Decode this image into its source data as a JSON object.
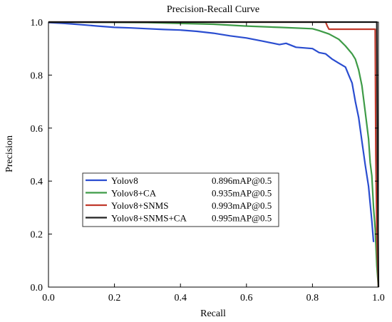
{
  "chart_data": {
    "type": "line",
    "title": "Precision-Recall Curve",
    "xlabel": "Recall",
    "ylabel": "Precision",
    "xlim": [
      0.0,
      1.0
    ],
    "ylim": [
      0.0,
      1.0
    ],
    "xticks": [
      "0.0",
      "0.2",
      "0.4",
      "0.6",
      "0.8",
      "1.0"
    ],
    "yticks": [
      "0.0",
      "0.2",
      "0.4",
      "0.6",
      "0.8",
      "1.0"
    ],
    "grid": false,
    "legend_position": "lower-left",
    "series": [
      {
        "name": "Yolov8",
        "map_label": "0.896mAP@0.5",
        "color": "#2a4dd0",
        "points": [
          [
            0.0,
            0.998
          ],
          [
            0.05,
            0.995
          ],
          [
            0.1,
            0.99
          ],
          [
            0.15,
            0.985
          ],
          [
            0.2,
            0.98
          ],
          [
            0.25,
            0.978
          ],
          [
            0.3,
            0.975
          ],
          [
            0.35,
            0.972
          ],
          [
            0.4,
            0.97
          ],
          [
            0.45,
            0.965
          ],
          [
            0.5,
            0.958
          ],
          [
            0.55,
            0.948
          ],
          [
            0.6,
            0.94
          ],
          [
            0.65,
            0.928
          ],
          [
            0.7,
            0.915
          ],
          [
            0.72,
            0.92
          ],
          [
            0.75,
            0.905
          ],
          [
            0.8,
            0.9
          ],
          [
            0.82,
            0.885
          ],
          [
            0.84,
            0.88
          ],
          [
            0.86,
            0.86
          ],
          [
            0.88,
            0.845
          ],
          [
            0.9,
            0.83
          ],
          [
            0.91,
            0.8
          ],
          [
            0.92,
            0.77
          ],
          [
            0.93,
            0.7
          ],
          [
            0.94,
            0.64
          ],
          [
            0.95,
            0.55
          ],
          [
            0.96,
            0.46
          ],
          [
            0.97,
            0.38
          ],
          [
            0.98,
            0.25
          ],
          [
            0.985,
            0.17
          ]
        ]
      },
      {
        "name": "Yolov8+CA",
        "map_label": "0.935mAP@0.5",
        "color": "#3e9b47",
        "points": [
          [
            0.0,
            1.0
          ],
          [
            0.3,
            0.998
          ],
          [
            0.5,
            0.992
          ],
          [
            0.6,
            0.985
          ],
          [
            0.7,
            0.98
          ],
          [
            0.8,
            0.975
          ],
          [
            0.82,
            0.968
          ],
          [
            0.85,
            0.955
          ],
          [
            0.88,
            0.935
          ],
          [
            0.9,
            0.91
          ],
          [
            0.92,
            0.88
          ],
          [
            0.93,
            0.86
          ],
          [
            0.94,
            0.82
          ],
          [
            0.95,
            0.76
          ],
          [
            0.96,
            0.66
          ],
          [
            0.97,
            0.56
          ],
          [
            0.975,
            0.47
          ],
          [
            0.98,
            0.42
          ],
          [
            0.985,
            0.3
          ],
          [
            0.99,
            0.22
          ],
          [
            0.995,
            0.08
          ],
          [
            1.0,
            0.0
          ]
        ]
      },
      {
        "name": "Yolov8+SNMS",
        "map_label": "0.993mAP@0.5",
        "color": "#c0392b",
        "points": [
          [
            0.0,
            1.0
          ],
          [
            0.84,
            1.0
          ],
          [
            0.845,
            0.985
          ],
          [
            0.85,
            0.973
          ],
          [
            0.99,
            0.973
          ],
          [
            0.992,
            0.5
          ],
          [
            0.995,
            0.2
          ],
          [
            1.0,
            0.0
          ]
        ]
      },
      {
        "name": "Yolov8+SNMS+CA",
        "map_label": "0.995mAP@0.5",
        "color": "#222222",
        "points": [
          [
            0.0,
            1.0
          ],
          [
            0.995,
            1.0
          ],
          [
            0.997,
            0.5
          ],
          [
            1.0,
            0.0
          ]
        ]
      }
    ]
  }
}
